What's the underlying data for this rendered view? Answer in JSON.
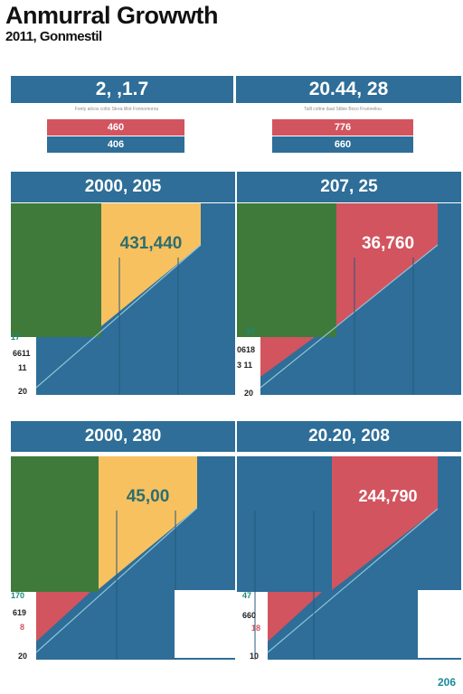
{
  "header": {
    "title": "Anmurral Growwth",
    "subtitle": "2011, Gonmestil"
  },
  "colors": {
    "blue": "#2e6e98",
    "green": "#3f7a3b",
    "yellow": "#f7c160",
    "red": "#d2545f",
    "white": "#ffffff"
  },
  "top_cards": [
    {
      "heading": "2, ,1.7",
      "note": "Fonty ailcos coltic Strea lillot Fonnomorou",
      "bars": [
        {
          "label": "460",
          "color": "red"
        },
        {
          "label": "406",
          "color": "blue"
        }
      ]
    },
    {
      "heading": "20.44, 28",
      "note": "Talll coltne ilaat Stibie Boco Frunneilou",
      "bars": [
        {
          "label": "776",
          "color": "red"
        },
        {
          "label": "660",
          "color": "blue"
        }
      ]
    }
  ],
  "chart_data": [
    {
      "type": "area",
      "title": "2000, 205",
      "value_label": "431,440",
      "accent": "yellow",
      "y_labels": [
        "17",
        "6611",
        "11"
      ],
      "axis_min_label": "20"
    },
    {
      "type": "area",
      "title": "207, 25",
      "value_label": "36,760",
      "accent": "red",
      "y_labels": [
        "97",
        "0618",
        "3 11"
      ],
      "axis_min_label": "20"
    },
    {
      "type": "area",
      "title": "2000, 280",
      "value_label": "45,00",
      "accent": "yellow",
      "y_labels": [
        "170",
        "619",
        "8"
      ],
      "axis_min_label": "20"
    },
    {
      "type": "area",
      "title": "20.20, 208",
      "value_label": "244,790",
      "accent": "red",
      "y_labels": [
        "47",
        "660",
        "18"
      ],
      "axis_min_label": "10"
    }
  ],
  "footer": {
    "page": "206"
  }
}
